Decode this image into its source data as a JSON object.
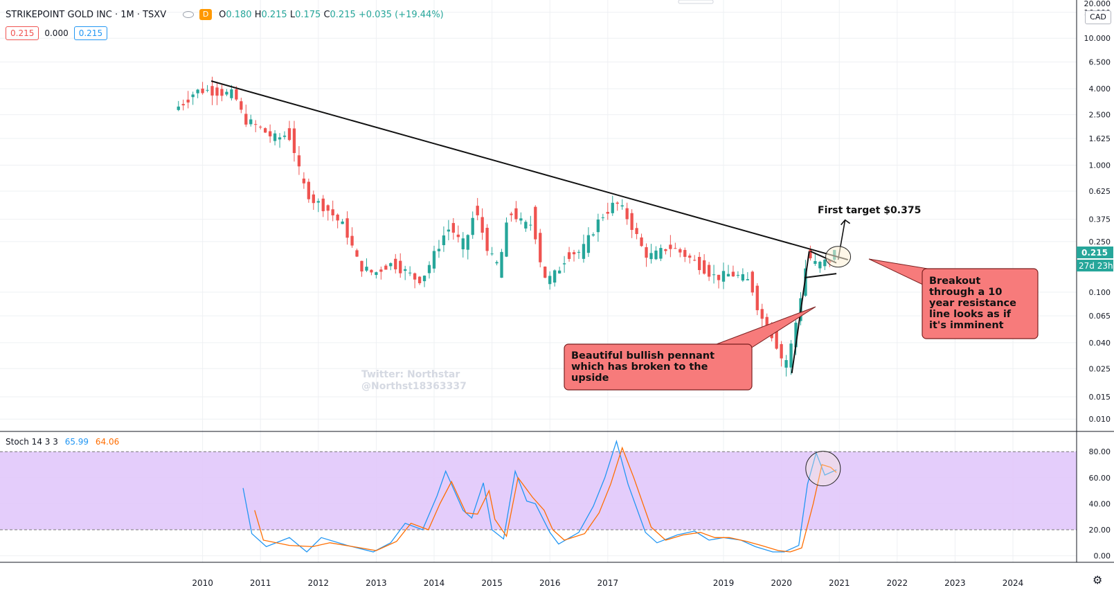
{
  "header": {
    "symbol_line": "STRIKEPOINT GOLD INC · 1M · TSXV",
    "interval_badge": "D",
    "open_label": "O",
    "open": "0.180",
    "high_label": "H",
    "high": "0.215",
    "low_label": "L",
    "low": "0.175",
    "close_label": "C",
    "close": "0.215",
    "change": "+0.035 (+19.44%)"
  },
  "value_boxes": {
    "left": "0.215",
    "middle": "0.000",
    "right": "0.215"
  },
  "currency": "CAD",
  "price_tag": "0.215",
  "countdown_tag": "27d 23h",
  "stoch_legend": {
    "name": "Stoch 14 3 3",
    "k": "65.99",
    "d": "64.06"
  },
  "watermark": {
    "line1": "Twitter: Northstar",
    "line2": "@Northst18363337"
  },
  "annotations": {
    "target": "First target $0.375",
    "pennant": [
      "Beautiful bullish pennant",
      "which has broken to the",
      "upside"
    ],
    "breakout": [
      "Breakout",
      "through a 10",
      "year resistance",
      "line looks as if",
      "it's imminent"
    ]
  },
  "colors": {
    "up": "#26a69a",
    "down": "#ef5350",
    "k_line": "#2196f3",
    "d_line": "#ff6d00",
    "band": "#e1c8fb",
    "callout": "#f77b7b",
    "highlight": "#fdf1d5"
  },
  "chart_data": [
    {
      "type": "candlestick",
      "title": "STRIKEPOINT GOLD INC · 1M · TSXV",
      "yscale": "log",
      "ylim": [
        0.008,
        20
      ],
      "y_ticks": [
        "20.000",
        "16.000",
        "10.000",
        "6.500",
        "4.000",
        "2.500",
        "1.625",
        "1.000",
        "0.625",
        "0.375",
        "0.250",
        "0.100",
        "0.065",
        "0.040",
        "0.025",
        "0.015",
        "0.010"
      ],
      "x_ticks": [
        "2010",
        "2011",
        "2012",
        "2013",
        "2014",
        "2015",
        "2016",
        "2017",
        "2019",
        "2020",
        "2021",
        "2022",
        "2023",
        "2024"
      ],
      "x_tick_years": [
        2010,
        2011,
        2012,
        2013,
        2014,
        2015,
        2016,
        2017,
        2019,
        2020,
        2021,
        2022,
        2023,
        2024
      ],
      "xlim": [
        2006.5,
        2025.1
      ],
      "control_points": [
        [
          2009.58,
          2.8
        ],
        [
          2009.75,
          3.2
        ],
        [
          2009.9,
          3.8
        ],
        [
          2010.1,
          3.9
        ],
        [
          2010.4,
          3.7
        ],
        [
          2010.6,
          3.6
        ],
        [
          2010.75,
          2.3
        ],
        [
          2011.0,
          2.0
        ],
        [
          2011.3,
          1.6
        ],
        [
          2011.55,
          1.8
        ],
        [
          2011.75,
          0.75
        ],
        [
          2011.9,
          0.55
        ],
        [
          2012.2,
          0.45
        ],
        [
          2012.5,
          0.32
        ],
        [
          2012.75,
          0.16
        ],
        [
          2013.0,
          0.14
        ],
        [
          2013.3,
          0.17
        ],
        [
          2013.6,
          0.14
        ],
        [
          2013.8,
          0.12
        ],
        [
          2014.0,
          0.18
        ],
        [
          2014.3,
          0.34
        ],
        [
          2014.55,
          0.22
        ],
        [
          2014.75,
          0.44
        ],
        [
          2015.0,
          0.2
        ],
        [
          2015.15,
          0.15
        ],
        [
          2015.35,
          0.45
        ],
        [
          2015.6,
          0.33
        ],
        [
          2015.75,
          0.35
        ],
        [
          2015.95,
          0.12
        ],
        [
          2016.15,
          0.14
        ],
        [
          2016.35,
          0.2
        ],
        [
          2016.6,
          0.21
        ],
        [
          2016.9,
          0.38
        ],
        [
          2017.2,
          0.52
        ],
        [
          2017.45,
          0.34
        ],
        [
          2017.7,
          0.19
        ],
        [
          2017.9,
          0.2
        ],
        [
          2018.1,
          0.23
        ],
        [
          2018.35,
          0.2
        ],
        [
          2018.65,
          0.16
        ],
        [
          2018.9,
          0.13
        ],
        [
          2019.2,
          0.14
        ],
        [
          2019.5,
          0.12
        ],
        [
          2019.7,
          0.06
        ],
        [
          2019.9,
          0.045
        ],
        [
          2020.1,
          0.026
        ],
        [
          2020.2,
          0.035
        ],
        [
          2020.35,
          0.08
        ],
        [
          2020.5,
          0.2
        ],
        [
          2020.62,
          0.16
        ],
        [
          2020.75,
          0.17
        ],
        [
          2020.92,
          0.18
        ]
      ],
      "last_candle": {
        "open": 0.18,
        "high": 0.215,
        "low": 0.175,
        "close": 0.215
      },
      "trendlines": [
        {
          "name": "10 year resistance line",
          "from": [
            2010.15,
            4.6
          ],
          "to": [
            2021.15,
            0.18
          ]
        },
        {
          "name": "pennant upper",
          "from": [
            2020.5,
            0.21
          ],
          "to": [
            2020.95,
            0.17
          ]
        },
        {
          "name": "pennant lower",
          "from": [
            2020.4,
            0.13
          ],
          "to": [
            2020.95,
            0.14
          ]
        },
        {
          "name": "pole",
          "from": [
            2020.18,
            0.023
          ],
          "to": [
            2020.48,
            0.21
          ]
        },
        {
          "name": "target arrow",
          "from": [
            2020.98,
            0.18
          ],
          "to": [
            2021.1,
            0.37
          ]
        }
      ]
    },
    {
      "type": "line",
      "title": "Stoch 14 3 3",
      "ylim": [
        -5,
        95
      ],
      "y_ticks": [
        "80.00",
        "60.00",
        "40.00",
        "20.00",
        "0.00"
      ],
      "bands": [
        20,
        80
      ],
      "series": [
        {
          "name": "%K",
          "color": "#2196f3",
          "points": [
            [
              2010.7,
              52
            ],
            [
              2010.85,
              17
            ],
            [
              2011.1,
              7
            ],
            [
              2011.5,
              14
            ],
            [
              2011.8,
              3
            ],
            [
              2012.05,
              14
            ],
            [
              2012.5,
              8
            ],
            [
              2012.95,
              3
            ],
            [
              2013.25,
              10
            ],
            [
              2013.5,
              25
            ],
            [
              2013.8,
              20
            ],
            [
              2014.05,
              46
            ],
            [
              2014.2,
              65
            ],
            [
              2014.5,
              35
            ],
            [
              2014.65,
              29
            ],
            [
              2014.85,
              56
            ],
            [
              2015.0,
              20
            ],
            [
              2015.2,
              13
            ],
            [
              2015.4,
              65
            ],
            [
              2015.6,
              42
            ],
            [
              2015.75,
              40
            ],
            [
              2016.0,
              18
            ],
            [
              2016.15,
              9
            ],
            [
              2016.5,
              18
            ],
            [
              2016.75,
              38
            ],
            [
              2016.95,
              60
            ],
            [
              2017.15,
              88
            ],
            [
              2017.35,
              55
            ],
            [
              2017.65,
              18
            ],
            [
              2017.85,
              10
            ],
            [
              2018.2,
              16
            ],
            [
              2018.5,
              19
            ],
            [
              2018.75,
              12
            ],
            [
              2019.0,
              14
            ],
            [
              2019.3,
              12
            ],
            [
              2019.55,
              7
            ],
            [
              2019.85,
              3
            ],
            [
              2020.05,
              3
            ],
            [
              2020.3,
              8
            ],
            [
              2020.45,
              55
            ],
            [
              2020.6,
              79
            ],
            [
              2020.75,
              62
            ],
            [
              2020.95,
              66
            ]
          ]
        },
        {
          "name": "%D",
          "color": "#ff6d00",
          "points": [
            [
              2010.9,
              35
            ],
            [
              2011.05,
              12
            ],
            [
              2011.5,
              8
            ],
            [
              2011.9,
              7
            ],
            [
              2012.2,
              10
            ],
            [
              2012.6,
              7
            ],
            [
              2013.0,
              4
            ],
            [
              2013.35,
              11
            ],
            [
              2013.6,
              25
            ],
            [
              2013.9,
              20
            ],
            [
              2014.1,
              40
            ],
            [
              2014.3,
              57
            ],
            [
              2014.55,
              33
            ],
            [
              2014.75,
              32
            ],
            [
              2014.95,
              50
            ],
            [
              2015.05,
              28
            ],
            [
              2015.25,
              15
            ],
            [
              2015.45,
              60
            ],
            [
              2015.7,
              45
            ],
            [
              2015.9,
              35
            ],
            [
              2016.05,
              20
            ],
            [
              2016.25,
              12
            ],
            [
              2016.6,
              17
            ],
            [
              2016.85,
              33
            ],
            [
              2017.05,
              55
            ],
            [
              2017.25,
              83
            ],
            [
              2017.45,
              60
            ],
            [
              2017.75,
              22
            ],
            [
              2018.0,
              12
            ],
            [
              2018.3,
              16
            ],
            [
              2018.6,
              18
            ],
            [
              2018.85,
              14
            ],
            [
              2019.1,
              14
            ],
            [
              2019.4,
              11
            ],
            [
              2019.65,
              8
            ],
            [
              2019.95,
              4
            ],
            [
              2020.15,
              3
            ],
            [
              2020.35,
              6
            ],
            [
              2020.55,
              40
            ],
            [
              2020.7,
              70
            ],
            [
              2020.85,
              68
            ],
            [
              2020.95,
              64
            ]
          ]
        }
      ]
    }
  ]
}
